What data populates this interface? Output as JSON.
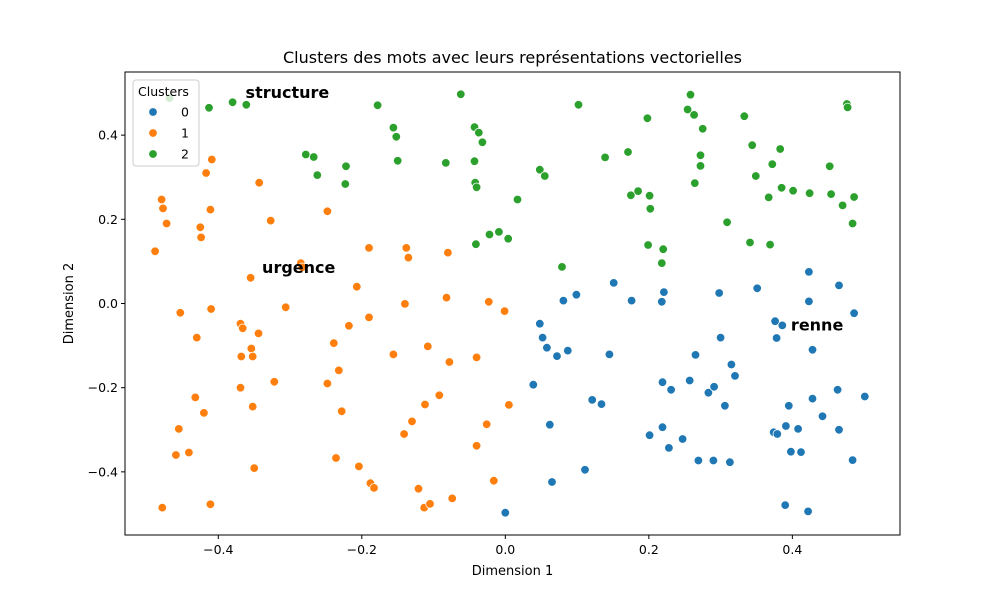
{
  "chart_data": {
    "type": "scatter",
    "title": "Clusters des mots avec leurs représentations vectorielles",
    "xlabel": "Dimension 1",
    "ylabel": "Dimension 2",
    "xlim": [
      -0.53,
      0.55
    ],
    "ylim": [
      -0.55,
      0.55
    ],
    "xticks": [
      -0.4,
      -0.2,
      0.0,
      0.2,
      0.4
    ],
    "yticks": [
      -0.4,
      -0.2,
      0.0,
      0.2,
      0.4
    ],
    "xtick_labels": [
      "−0.4",
      "−0.2",
      "0.0",
      "0.2",
      "0.4"
    ],
    "ytick_labels": [
      "−0.4",
      "−0.2",
      "0.0",
      "0.2",
      "0.4"
    ],
    "grid": false,
    "legend": {
      "title": "Clusters",
      "placement": "top-left"
    },
    "series": [
      {
        "name": "0",
        "color": "#1f77b4",
        "points": [
          [
            0.0,
            -0.497
          ],
          [
            0.048,
            -0.048
          ],
          [
            0.072,
            -0.125
          ],
          [
            0.081,
            0.007
          ],
          [
            0.099,
            0.021
          ],
          [
            0.151,
            0.049
          ],
          [
            0.176,
            0.007
          ],
          [
            0.218,
            0.004
          ],
          [
            0.221,
            0.027
          ],
          [
            0.298,
            0.025
          ],
          [
            0.351,
            0.036
          ],
          [
            0.376,
            -0.042
          ],
          [
            0.386,
            -0.052
          ],
          [
            0.423,
            0.075
          ],
          [
            0.423,
            0.005
          ],
          [
            0.465,
            0.043
          ],
          [
            0.486,
            -0.023
          ],
          [
            0.052,
            -0.081
          ],
          [
            0.058,
            -0.105
          ],
          [
            0.087,
            -0.112
          ],
          [
            0.039,
            -0.193
          ],
          [
            0.145,
            -0.121
          ],
          [
            0.265,
            -0.122
          ],
          [
            0.3,
            -0.081
          ],
          [
            0.315,
            -0.145
          ],
          [
            0.32,
            -0.172
          ],
          [
            0.378,
            -0.082
          ],
          [
            0.428,
            -0.11
          ],
          [
            0.219,
            -0.187
          ],
          [
            0.231,
            -0.205
          ],
          [
            0.257,
            -0.183
          ],
          [
            0.283,
            -0.212
          ],
          [
            0.291,
            -0.198
          ],
          [
            0.306,
            -0.243
          ],
          [
            0.121,
            -0.229
          ],
          [
            0.134,
            -0.239
          ],
          [
            0.062,
            -0.288
          ],
          [
            0.219,
            -0.294
          ],
          [
            0.201,
            -0.313
          ],
          [
            0.247,
            -0.322
          ],
          [
            0.228,
            -0.343
          ],
          [
            0.29,
            -0.373
          ],
          [
            0.313,
            -0.377
          ],
          [
            0.269,
            -0.373
          ],
          [
            0.111,
            -0.395
          ],
          [
            0.065,
            -0.424
          ],
          [
            0.374,
            -0.306
          ],
          [
            0.379,
            -0.31
          ],
          [
            0.395,
            -0.243
          ],
          [
            0.391,
            -0.291
          ],
          [
            0.408,
            -0.298
          ],
          [
            0.428,
            -0.226
          ],
          [
            0.442,
            -0.268
          ],
          [
            0.463,
            -0.205
          ],
          [
            0.398,
            -0.352
          ],
          [
            0.412,
            -0.353
          ],
          [
            0.465,
            -0.3
          ],
          [
            0.484,
            -0.372
          ],
          [
            0.501,
            -0.221
          ],
          [
            0.39,
            -0.479
          ],
          [
            0.422,
            -0.494
          ]
        ]
      },
      {
        "name": "1",
        "color": "#ff7f0e",
        "points": [
          [
            -0.479,
            0.247
          ],
          [
            -0.477,
            0.226
          ],
          [
            -0.472,
            0.19
          ],
          [
            -0.488,
            0.124
          ],
          [
            -0.425,
            0.181
          ],
          [
            -0.424,
            0.157
          ],
          [
            -0.417,
            0.31
          ],
          [
            -0.409,
            0.342
          ],
          [
            -0.411,
            0.223
          ],
          [
            -0.343,
            0.287
          ],
          [
            -0.327,
            0.197
          ],
          [
            -0.248,
            0.219
          ],
          [
            -0.285,
            0.096
          ],
          [
            -0.283,
            0.086
          ],
          [
            -0.355,
            0.061
          ],
          [
            -0.19,
            0.132
          ],
          [
            -0.138,
            0.132
          ],
          [
            -0.135,
            0.109
          ],
          [
            -0.08,
            0.121
          ],
          [
            -0.207,
            0.04
          ],
          [
            -0.306,
            -0.009
          ],
          [
            -0.41,
            -0.013
          ],
          [
            -0.453,
            -0.022
          ],
          [
            -0.369,
            -0.048
          ],
          [
            -0.366,
            -0.059
          ],
          [
            -0.344,
            -0.071
          ],
          [
            -0.43,
            -0.081
          ],
          [
            -0.354,
            -0.107
          ],
          [
            -0.368,
            -0.126
          ],
          [
            -0.352,
            -0.126
          ],
          [
            -0.239,
            -0.094
          ],
          [
            -0.218,
            -0.053
          ],
          [
            -0.19,
            -0.033
          ],
          [
            -0.14,
            -0.001
          ],
          [
            -0.108,
            -0.102
          ],
          [
            -0.082,
            0.014
          ],
          [
            -0.023,
            0.004
          ],
          [
            -0.001,
            -0.018
          ],
          [
            -0.078,
            -0.139
          ],
          [
            -0.04,
            -0.128
          ],
          [
            -0.156,
            -0.121
          ],
          [
            -0.232,
            -0.159
          ],
          [
            -0.248,
            -0.19
          ],
          [
            -0.322,
            -0.186
          ],
          [
            -0.369,
            -0.2
          ],
          [
            -0.432,
            -0.223
          ],
          [
            -0.42,
            -0.26
          ],
          [
            -0.352,
            -0.245
          ],
          [
            -0.228,
            -0.256
          ],
          [
            -0.13,
            -0.28
          ],
          [
            -0.112,
            -0.24
          ],
          [
            -0.092,
            -0.218
          ],
          [
            -0.026,
            -0.287
          ],
          [
            0.005,
            -0.241
          ],
          [
            -0.141,
            -0.31
          ],
          [
            -0.455,
            -0.298
          ],
          [
            -0.441,
            -0.354
          ],
          [
            -0.459,
            -0.36
          ],
          [
            -0.35,
            -0.391
          ],
          [
            -0.236,
            -0.367
          ],
          [
            -0.204,
            -0.387
          ],
          [
            -0.188,
            -0.427
          ],
          [
            -0.183,
            -0.438
          ],
          [
            -0.121,
            -0.44
          ],
          [
            -0.113,
            -0.485
          ],
          [
            -0.105,
            -0.476
          ],
          [
            -0.074,
            -0.463
          ],
          [
            -0.04,
            -0.338
          ],
          [
            -0.016,
            -0.421
          ],
          [
            -0.478,
            -0.485
          ],
          [
            -0.411,
            -0.477
          ]
        ]
      },
      {
        "name": "2",
        "color": "#2ca02c",
        "points": [
          [
            -0.468,
            0.488
          ],
          [
            -0.413,
            0.465
          ],
          [
            -0.38,
            0.478
          ],
          [
            -0.361,
            0.472
          ],
          [
            -0.278,
            0.354
          ],
          [
            -0.267,
            0.348
          ],
          [
            -0.262,
            0.305
          ],
          [
            -0.222,
            0.326
          ],
          [
            -0.223,
            0.284
          ],
          [
            -0.178,
            0.471
          ],
          [
            -0.156,
            0.418
          ],
          [
            -0.152,
            0.396
          ],
          [
            -0.15,
            0.339
          ],
          [
            -0.083,
            0.334
          ],
          [
            -0.062,
            0.497
          ],
          [
            -0.043,
            0.419
          ],
          [
            -0.037,
            0.406
          ],
          [
            -0.032,
            0.383
          ],
          [
            -0.043,
            0.338
          ],
          [
            -0.042,
            0.287
          ],
          [
            -0.04,
            0.276
          ],
          [
            0.017,
            0.247
          ],
          [
            0.048,
            0.318
          ],
          [
            0.055,
            0.303
          ],
          [
            -0.041,
            0.141
          ],
          [
            -0.022,
            0.164
          ],
          [
            -0.009,
            0.17
          ],
          [
            0.004,
            0.154
          ],
          [
            0.079,
            0.087
          ],
          [
            0.102,
            0.472
          ],
          [
            0.139,
            0.347
          ],
          [
            0.171,
            0.36
          ],
          [
            0.175,
            0.257
          ],
          [
            0.185,
            0.267
          ],
          [
            0.198,
            0.44
          ],
          [
            0.201,
            0.256
          ],
          [
            0.202,
            0.225
          ],
          [
            0.199,
            0.139
          ],
          [
            0.218,
            0.096
          ],
          [
            0.22,
            0.129
          ],
          [
            0.254,
            0.461
          ],
          [
            0.258,
            0.496
          ],
          [
            0.263,
            0.448
          ],
          [
            0.275,
            0.415
          ],
          [
            0.272,
            0.352
          ],
          [
            0.272,
            0.327
          ],
          [
            0.264,
            0.286
          ],
          [
            0.309,
            0.193
          ],
          [
            0.333,
            0.445
          ],
          [
            0.344,
            0.376
          ],
          [
            0.349,
            0.303
          ],
          [
            0.341,
            0.145
          ],
          [
            0.367,
            0.252
          ],
          [
            0.372,
            0.331
          ],
          [
            0.383,
            0.367
          ],
          [
            0.385,
            0.275
          ],
          [
            0.401,
            0.268
          ],
          [
            0.424,
            0.262
          ],
          [
            0.452,
            0.326
          ],
          [
            0.454,
            0.26
          ],
          [
            0.47,
            0.233
          ],
          [
            0.476,
            0.474
          ],
          [
            0.477,
            0.466
          ],
          [
            0.484,
            0.19
          ],
          [
            0.486,
            0.253
          ],
          [
            0.369,
            0.14
          ]
        ]
      }
    ],
    "annotations": [
      {
        "text": "structure",
        "x": -0.362,
        "y": 0.502
      },
      {
        "text": "urgence",
        "x": -0.339,
        "y": 0.087
      },
      {
        "text": "renne",
        "x": 0.398,
        "y": -0.05
      }
    ]
  }
}
